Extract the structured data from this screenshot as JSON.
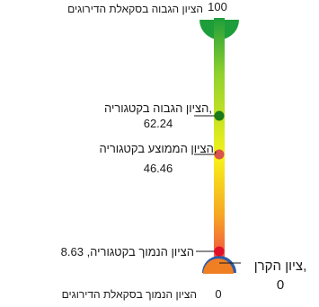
{
  "chart_data": {
    "type": "gauge",
    "orientation": "vertical",
    "scale_min": 0,
    "scale_max": 100,
    "scale_min_label": "הציון הנמוך בסקאלת הדירוגים",
    "scale_max_label": "הציון הגבוה בסקאלת הדירוגים",
    "scale_min_value_text": "0",
    "scale_max_value_text": "100",
    "gradient_colors": [
      "#1e9e3a",
      "#8fd12e",
      "#f7f21a",
      "#f6a623",
      "#ee3a4c"
    ],
    "markers": [
      {
        "key": "high",
        "label": "הציון הגבוה בקטגוריה,",
        "value_text": "62.24",
        "value": 62.24,
        "color": "#1a7a1a"
      },
      {
        "key": "avg",
        "label": "הציון הממוצע בקטגוריה,",
        "value_text": "46.46",
        "value": 46.46,
        "color": "#d9534f"
      },
      {
        "key": "low",
        "label": "הציון הנמוך בקטגוריה, 8.63",
        "value": 8.63,
        "color": "#e0102a"
      }
    ],
    "score": {
      "label": "ציון הקרן,",
      "value_text": "0",
      "value": 0,
      "color": "#f07f24"
    }
  }
}
